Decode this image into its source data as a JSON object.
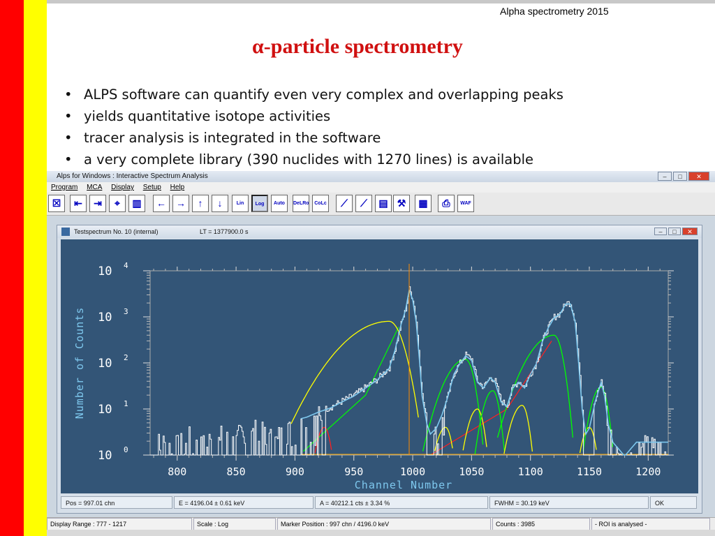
{
  "slide": {
    "header": "Alpha spectrometry 2015",
    "title": "α-particle spectrometry",
    "bullets": [
      "ALPS software can quantify even very complex and overlapping peaks",
      "yields quantitative isotope activities",
      "tracer analysis is integrated in the software",
      "a very complete library (390 nuclides with 1270 lines) is available"
    ]
  },
  "app": {
    "title": "Alps  for  Windows :  Interactive Spectrum Analysis",
    "menu": [
      "Program",
      "MCA",
      "Display",
      "Setup",
      "Help"
    ],
    "toolbar": [
      {
        "icon": "stop-icon"
      },
      {
        "icon": "marker-left-icon"
      },
      {
        "icon": "marker-right-icon"
      },
      {
        "icon": "peak-search-icon"
      },
      {
        "icon": "spectrum-icon"
      },
      {
        "icon": "arrow-left-icon"
      },
      {
        "icon": "arrow-right-icon"
      },
      {
        "icon": "arrow-up-icon"
      },
      {
        "icon": "arrow-down-icon"
      },
      {
        "icon": "lin-icon",
        "label": "Lin"
      },
      {
        "icon": "log-icon",
        "label": "Log"
      },
      {
        "icon": "auto-icon",
        "label": "Auto"
      },
      {
        "icon": "del-roi-icon",
        "label": "DeLRoi"
      },
      {
        "icon": "calc-icon",
        "label": "CoLc"
      },
      {
        "icon": "calibrate-icon"
      },
      {
        "icon": "energy-cal-icon"
      },
      {
        "icon": "library-icon"
      },
      {
        "icon": "tools-icon"
      },
      {
        "icon": "book-icon"
      },
      {
        "icon": "printer-icon"
      },
      {
        "icon": "report-icon",
        "label": "WAF"
      }
    ],
    "child_window": {
      "title": "Testspectrum  No. 10  (internal)",
      "live_time": "LT = 1377900.0 s"
    },
    "status": {
      "pos": "Pos =   997.01   chn",
      "energy": "E =   4196.04  ±   0.61  keV",
      "area": "A =      40212.1   cts  ±    3.34  %",
      "fwhm": "FWHM   =    30.19  keV",
      "ok": "OK"
    },
    "app_status": {
      "display_range": "Display Range :   777  -  1217",
      "scale": "Scale :  Log",
      "marker": "Marker Position :    997  chn  /  4196.0  keV",
      "counts": "Counts :       3985",
      "roi": "-  ROI is analysed  -"
    }
  },
  "chart_data": {
    "type": "line",
    "xlabel": "Channel Number",
    "ylabel": "Number of Counts",
    "xlim": [
      777,
      1217
    ],
    "ylim": [
      1,
      10000
    ],
    "yscale": "log",
    "x_ticks": [
      800,
      850,
      900,
      950,
      1000,
      1050,
      1100,
      1150,
      1200
    ],
    "y_ticks": [
      {
        "base": "10",
        "exp": "0"
      },
      {
        "base": "10",
        "exp": "1"
      },
      {
        "base": "10",
        "exp": "2"
      },
      {
        "base": "10",
        "exp": "3"
      },
      {
        "base": "10",
        "exp": "4"
      }
    ],
    "marker_channel": 997,
    "colors": {
      "background": "#335577",
      "spectrum": "#ffffff",
      "fit": "#7ec8ee",
      "fwhm": "#ff8c00",
      "envelope": "#ff2020"
    },
    "components": [
      {
        "color": "#ffff00",
        "peak": 980,
        "height": 800,
        "sl": 26,
        "sr": 8
      },
      {
        "color": "#00ff00",
        "peak": 1045,
        "height": 120,
        "sl": 12,
        "sr": 5
      },
      {
        "color": "#ffff00",
        "peak": 1028,
        "height": 4,
        "sl": 6,
        "sr": 4
      },
      {
        "color": "#ffff00",
        "peak": 1055,
        "height": 10,
        "sl": 6,
        "sr": 4
      },
      {
        "color": "#00ff00",
        "peak": 1068,
        "height": 25,
        "sl": 6,
        "sr": 4
      },
      {
        "color": "#ffff00",
        "peak": 1093,
        "height": 12,
        "sl": 7,
        "sr": 4
      },
      {
        "color": "#00ff00",
        "peak": 1120,
        "height": 400,
        "sl": 15,
        "sr": 5
      },
      {
        "color": "#ffff00",
        "peak": 1150,
        "height": 4,
        "sl": 5,
        "sr": 4
      },
      {
        "color": "#00ff00",
        "peak": 1160,
        "height": 30,
        "sl": 6,
        "sr": 4
      },
      {
        "color": "#ff2020",
        "peak": 925,
        "height": 4,
        "sl": 5,
        "sr": 4
      }
    ],
    "spectrum": [
      [
        777,
        2
      ],
      [
        790,
        3
      ],
      [
        800,
        2
      ],
      [
        810,
        3
      ],
      [
        820,
        2
      ],
      [
        830,
        4
      ],
      [
        840,
        3
      ],
      [
        850,
        3
      ],
      [
        860,
        5
      ],
      [
        870,
        4
      ],
      [
        880,
        3
      ],
      [
        890,
        4
      ],
      [
        900,
        6
      ],
      [
        910,
        7
      ],
      [
        920,
        9
      ],
      [
        930,
        11
      ],
      [
        940,
        15
      ],
      [
        950,
        20
      ],
      [
        960,
        30
      ],
      [
        970,
        45
      ],
      [
        980,
        80
      ],
      [
        985,
        200
      ],
      [
        990,
        700
      ],
      [
        994,
        1500
      ],
      [
        997,
        3985
      ],
      [
        1000,
        2500
      ],
      [
        1003,
        800
      ],
      [
        1006,
        100
      ],
      [
        1008,
        20
      ],
      [
        1012,
        5
      ],
      [
        1015,
        3
      ],
      [
        1020,
        4
      ],
      [
        1025,
        8
      ],
      [
        1030,
        20
      ],
      [
        1035,
        60
      ],
      [
        1040,
        100
      ],
      [
        1045,
        150
      ],
      [
        1050,
        120
      ],
      [
        1055,
        40
      ],
      [
        1060,
        30
      ],
      [
        1066,
        50
      ],
      [
        1070,
        40
      ],
      [
        1075,
        15
      ],
      [
        1080,
        12
      ],
      [
        1085,
        30
      ],
      [
        1090,
        40
      ],
      [
        1095,
        30
      ],
      [
        1100,
        60
      ],
      [
        1105,
        100
      ],
      [
        1110,
        300
      ],
      [
        1115,
        600
      ],
      [
        1120,
        1000
      ],
      [
        1125,
        1200
      ],
      [
        1130,
        2000
      ],
      [
        1134,
        2000
      ],
      [
        1138,
        800
      ],
      [
        1141,
        100
      ],
      [
        1144,
        10
      ],
      [
        1147,
        3
      ],
      [
        1150,
        4
      ],
      [
        1155,
        15
      ],
      [
        1160,
        40
      ],
      [
        1163,
        20
      ],
      [
        1166,
        5
      ],
      [
        1170,
        2
      ],
      [
        1180,
        1
      ],
      [
        1190,
        2
      ],
      [
        1200,
        2
      ],
      [
        1210,
        2
      ],
      [
        1217,
        2
      ]
    ]
  }
}
